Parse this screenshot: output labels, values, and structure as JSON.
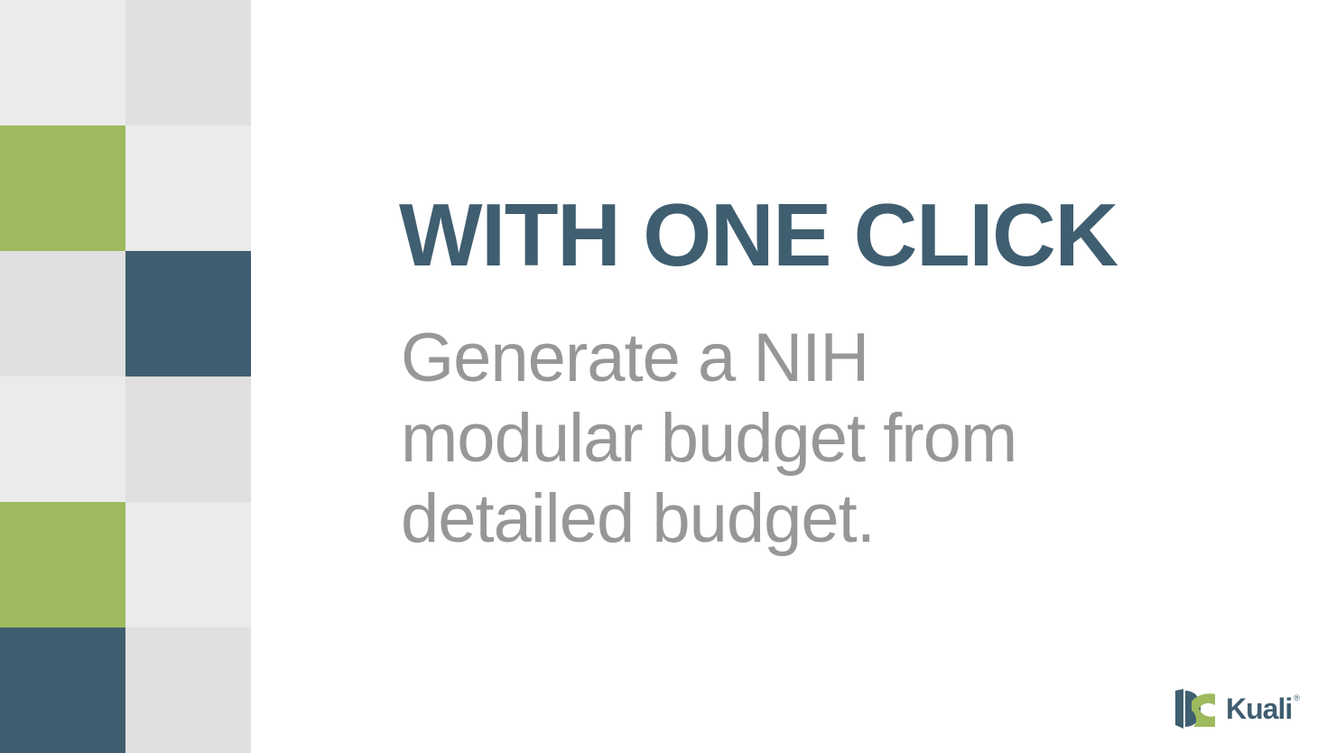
{
  "slide": {
    "headline": "WITH ONE CLICK",
    "subhead_lines": [
      "Generate a NIH",
      "modular budget from",
      "detailed budget."
    ]
  },
  "logo": {
    "icon": "kuali-logo-icon",
    "name": "Kuali",
    "registered_mark": "®"
  },
  "tiles": {
    "colors": [
      "#ebebeb",
      "#e0e0e0",
      "#9dba5e",
      "#ebebeb",
      "#e0e0e0",
      "#3f5e70",
      "#ebebeb",
      "#e0e0e0",
      "#9dba5e",
      "#ebebeb",
      "#3f5e70",
      "#e0e0e0"
    ]
  },
  "colors": {
    "navy": "#3f5e70",
    "green": "#9dba5e",
    "grey_text": "#979797",
    "light_tile": "#ebebeb",
    "mid_tile": "#e0e0e0"
  }
}
